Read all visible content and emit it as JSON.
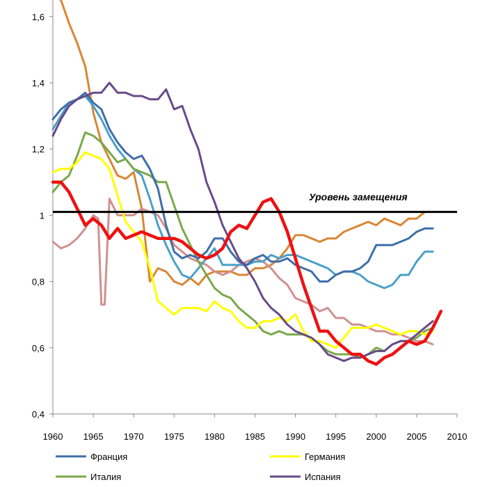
{
  "chart_data": {
    "type": "line",
    "xlim": [
      1960,
      2010
    ],
    "ylim": [
      0.4,
      1.65
    ],
    "x_ticks": [
      "1960",
      "1965",
      "1970",
      "1975",
      "1980",
      "1985",
      "1990",
      "1995",
      "2000",
      "2005",
      "2010"
    ],
    "y_ticks": [
      "0,4",
      "0,6",
      "0,8",
      "1",
      "1,2",
      "1,4",
      "1,6"
    ],
    "annotation": "Уровень замещения",
    "reference_line": 1.01,
    "legend_position": "bottom",
    "series": [
      {
        "name": "Франция",
        "color": "#3e6ea8",
        "width": 3,
        "x": [
          1960,
          1961,
          1962,
          1963,
          1964,
          1965,
          1966,
          1967,
          1968,
          1969,
          1970,
          1971,
          1972,
          1973,
          1974,
          1975,
          1976,
          1977,
          1978,
          1979,
          1980,
          1981,
          1982,
          1983,
          1984,
          1985,
          1986,
          1987,
          1988,
          1989,
          1990,
          1991,
          1992,
          1993,
          1994,
          1995,
          1996,
          1997,
          1998,
          1999,
          2000,
          2001,
          2002,
          2003,
          2004,
          2005,
          2006,
          2007
        ],
        "values": [
          1.29,
          1.32,
          1.34,
          1.35,
          1.37,
          1.34,
          1.32,
          1.26,
          1.22,
          1.19,
          1.17,
          1.18,
          1.14,
          1.08,
          0.97,
          0.89,
          0.87,
          0.88,
          0.87,
          0.89,
          0.93,
          0.93,
          0.89,
          0.86,
          0.85,
          0.87,
          0.88,
          0.86,
          0.86,
          0.87,
          0.85,
          0.84,
          0.83,
          0.8,
          0.8,
          0.82,
          0.83,
          0.83,
          0.84,
          0.86,
          0.91,
          0.91,
          0.91,
          0.92,
          0.93,
          0.95,
          0.96,
          0.96
        ]
      },
      {
        "name": "Германия",
        "color": "#ffff00",
        "width": 3,
        "x": [
          1960,
          1961,
          1962,
          1963,
          1964,
          1965,
          1966,
          1967,
          1968,
          1969,
          1970,
          1971,
          1972,
          1973,
          1974,
          1975,
          1976,
          1977,
          1978,
          1979,
          1980,
          1981,
          1982,
          1983,
          1984,
          1985,
          1986,
          1987,
          1988,
          1989,
          1990,
          1991,
          1992,
          1993,
          1994,
          1995,
          1996,
          1997,
          1998,
          1999,
          2000,
          2001,
          2002,
          2003,
          2004,
          2005,
          2006,
          2007
        ],
        "values": [
          1.13,
          1.14,
          1.14,
          1.16,
          1.19,
          1.18,
          1.17,
          1.14,
          1.06,
          0.98,
          0.95,
          0.92,
          0.84,
          0.74,
          0.72,
          0.7,
          0.72,
          0.72,
          0.72,
          0.71,
          0.74,
          0.72,
          0.71,
          0.68,
          0.66,
          0.66,
          0.68,
          0.68,
          0.69,
          0.68,
          0.7,
          0.65,
          0.62,
          0.62,
          0.61,
          0.6,
          0.63,
          0.66,
          0.66,
          0.66,
          0.67,
          0.66,
          0.65,
          0.64,
          0.65,
          0.65,
          0.64,
          0.65
        ]
      },
      {
        "name": "Италия",
        "color": "#7aa84a",
        "width": 3,
        "x": [
          1960,
          1961,
          1962,
          1963,
          1964,
          1965,
          1966,
          1967,
          1968,
          1969,
          1970,
          1971,
          1972,
          1973,
          1974,
          1975,
          1976,
          1977,
          1978,
          1979,
          1980,
          1981,
          1982,
          1983,
          1984,
          1985,
          1986,
          1987,
          1988,
          1989,
          1990,
          1991,
          1992,
          1993,
          1994,
          1995,
          1996,
          1997,
          1998,
          1999,
          2000,
          2001,
          2002,
          2003,
          2004,
          2005,
          2006,
          2007
        ],
        "values": [
          1.07,
          1.1,
          1.12,
          1.18,
          1.25,
          1.24,
          1.22,
          1.19,
          1.16,
          1.17,
          1.14,
          1.13,
          1.12,
          1.1,
          1.1,
          1.03,
          0.96,
          0.91,
          0.86,
          0.82,
          0.78,
          0.76,
          0.75,
          0.72,
          0.7,
          0.68,
          0.65,
          0.64,
          0.65,
          0.64,
          0.64,
          0.64,
          0.63,
          0.61,
          0.59,
          0.58,
          0.58,
          0.58,
          0.57,
          0.58,
          0.6,
          0.59,
          0.61,
          0.62,
          0.62,
          0.63,
          0.65,
          0.66
        ]
      },
      {
        "name": "Испания",
        "color": "#684a8a",
        "width": 3,
        "x": [
          1960,
          1961,
          1962,
          1963,
          1964,
          1965,
          1966,
          1967,
          1968,
          1969,
          1970,
          1971,
          1972,
          1973,
          1974,
          1975,
          1976,
          1977,
          1978,
          1979,
          1980,
          1981,
          1982,
          1983,
          1984,
          1985,
          1986,
          1987,
          1988,
          1989,
          1990,
          1991,
          1992,
          1993,
          1994,
          1995,
          1996,
          1997,
          1998,
          1999,
          2000,
          2001,
          2002,
          2003,
          2004,
          2005,
          2006,
          2007
        ],
        "values": [
          1.24,
          1.29,
          1.33,
          1.35,
          1.36,
          1.37,
          1.37,
          1.4,
          1.37,
          1.37,
          1.36,
          1.36,
          1.35,
          1.35,
          1.38,
          1.32,
          1.33,
          1.26,
          1.2,
          1.1,
          1.04,
          0.97,
          0.92,
          0.87,
          0.84,
          0.8,
          0.75,
          0.72,
          0.7,
          0.67,
          0.65,
          0.64,
          0.63,
          0.61,
          0.58,
          0.57,
          0.56,
          0.57,
          0.57,
          0.58,
          0.59,
          0.59,
          0.61,
          0.62,
          0.62,
          0.64,
          0.66,
          0.68
        ]
      },
      {
        "name": "",
        "color": "#d98633",
        "width": 3,
        "x": [
          1960,
          1961,
          1962,
          1963,
          1964,
          1965,
          1966,
          1967,
          1968,
          1969,
          1970,
          1971,
          1972,
          1973,
          1974,
          1975,
          1976,
          1977,
          1978,
          1979,
          1980,
          1981,
          1982,
          1983,
          1984,
          1985,
          1986,
          1987,
          1988,
          1989,
          1990,
          1991,
          1992,
          1993,
          1994,
          1995,
          1996,
          1997,
          1998,
          1999,
          2000,
          2001,
          2002,
          2003,
          2004,
          2005,
          2006
        ],
        "values": [
          1.66,
          1.65,
          1.58,
          1.52,
          1.45,
          1.31,
          1.22,
          1.17,
          1.12,
          1.11,
          1.13,
          1.02,
          0.8,
          0.84,
          0.83,
          0.8,
          0.79,
          0.81,
          0.79,
          0.82,
          0.83,
          0.83,
          0.83,
          0.82,
          0.82,
          0.84,
          0.84,
          0.85,
          0.87,
          0.9,
          0.94,
          0.94,
          0.93,
          0.92,
          0.93,
          0.93,
          0.95,
          0.96,
          0.97,
          0.98,
          0.97,
          0.99,
          0.98,
          0.97,
          0.99,
          0.99,
          1.01
        ]
      },
      {
        "name": "",
        "color": "#4aa0c8",
        "width": 3,
        "x": [
          1960,
          1961,
          1962,
          1963,
          1964,
          1965,
          1966,
          1967,
          1968,
          1969,
          1970,
          1971,
          1972,
          1973,
          1974,
          1975,
          1976,
          1977,
          1978,
          1979,
          1980,
          1981,
          1982,
          1983,
          1984,
          1985,
          1986,
          1987,
          1988,
          1989,
          1990,
          1991,
          1992,
          1993,
          1994,
          1995,
          1996,
          1997,
          1998,
          1999,
          2000,
          2001,
          2002,
          2003,
          2004,
          2005,
          2006,
          2007
        ],
        "values": [
          1.26,
          1.3,
          1.34,
          1.35,
          1.36,
          1.33,
          1.29,
          1.24,
          1.2,
          1.17,
          1.14,
          1.12,
          1.05,
          0.97,
          0.91,
          0.86,
          0.82,
          0.81,
          0.84,
          0.87,
          0.9,
          0.85,
          0.85,
          0.85,
          0.85,
          0.86,
          0.86,
          0.88,
          0.87,
          0.88,
          0.88,
          0.87,
          0.86,
          0.85,
          0.84,
          0.82,
          0.83,
          0.83,
          0.82,
          0.8,
          0.79,
          0.78,
          0.79,
          0.82,
          0.82,
          0.86,
          0.89,
          0.89
        ]
      },
      {
        "name": "",
        "color": "#d09090",
        "width": 3,
        "x": [
          1960,
          1961,
          1962,
          1963,
          1964,
          1965,
          1965.6,
          1966,
          1966.4,
          1967,
          1968,
          1969,
          1970,
          1971,
          1972,
          1973,
          1974,
          1975,
          1976,
          1977,
          1978,
          1979,
          1980,
          1981,
          1982,
          1983,
          1984,
          1985,
          1986,
          1987,
          1988,
          1989,
          1990,
          1991,
          1992,
          1993,
          1994,
          1995,
          1996,
          1997,
          1998,
          1999,
          2000,
          2001,
          2002,
          2003,
          2004,
          2005,
          2006,
          2007
        ],
        "values": [
          0.92,
          0.9,
          0.91,
          0.93,
          0.96,
          1.0,
          0.99,
          0.73,
          0.73,
          1.05,
          1.0,
          1.0,
          1.0,
          1.02,
          1.01,
          1.0,
          0.96,
          0.91,
          0.89,
          0.87,
          0.86,
          0.85,
          0.83,
          0.82,
          0.83,
          0.85,
          0.86,
          0.87,
          0.86,
          0.84,
          0.81,
          0.79,
          0.75,
          0.74,
          0.73,
          0.71,
          0.72,
          0.69,
          0.69,
          0.67,
          0.67,
          0.66,
          0.65,
          0.65,
          0.64,
          0.64,
          0.63,
          0.62,
          0.62,
          0.61
        ]
      },
      {
        "name": "",
        "color": "#ee1111",
        "width": 4.5,
        "x": [
          1960,
          1961,
          1962,
          1963,
          1964,
          1965,
          1966,
          1967,
          1968,
          1969,
          1970,
          1971,
          1972,
          1973,
          1974,
          1975,
          1976,
          1977,
          1978,
          1979,
          1980,
          1981,
          1982,
          1983,
          1984,
          1985,
          1986,
          1987,
          1988,
          1989,
          1990,
          1991,
          1992,
          1993,
          1994,
          1995,
          1996,
          1997,
          1998,
          1999,
          2000,
          2001,
          2002,
          2003,
          2004,
          2005,
          2006,
          2007,
          2008
        ],
        "values": [
          1.1,
          1.1,
          1.07,
          1.02,
          0.97,
          0.99,
          0.97,
          0.93,
          0.96,
          0.93,
          0.94,
          0.95,
          0.94,
          0.93,
          0.93,
          0.93,
          0.92,
          0.9,
          0.88,
          0.87,
          0.88,
          0.9,
          0.95,
          0.97,
          0.96,
          1.0,
          1.04,
          1.05,
          1.01,
          0.95,
          0.87,
          0.79,
          0.72,
          0.65,
          0.65,
          0.62,
          0.6,
          0.58,
          0.58,
          0.56,
          0.55,
          0.57,
          0.58,
          0.6,
          0.62,
          0.61,
          0.62,
          0.66,
          0.71
        ]
      }
    ]
  }
}
